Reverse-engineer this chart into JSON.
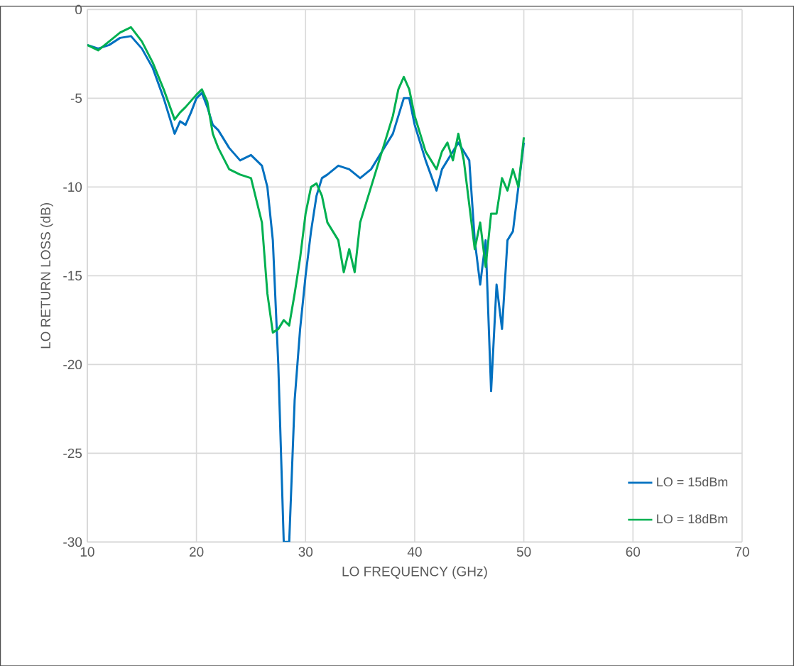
{
  "chart_data": {
    "type": "line",
    "xlabel": "LO FREQUENCY (GHz)",
    "ylabel": "LO RETURN LOSS (dB)",
    "xlim": [
      10,
      70
    ],
    "xticks": [
      10,
      20,
      30,
      40,
      50,
      60,
      70
    ],
    "ylim": [
      -30,
      0
    ],
    "yticks": [
      -30,
      -25,
      -20,
      -15,
      -10,
      -5,
      0
    ],
    "grid": true,
    "legend": "bottom right",
    "series": [
      {
        "name": "LO = 15dBm",
        "color": "#0070c0",
        "x": [
          10,
          11,
          12,
          13,
          14,
          15,
          16,
          17,
          17.5,
          18,
          18.5,
          19,
          19.5,
          20,
          20.5,
          21,
          21.5,
          22,
          23,
          24,
          25,
          26,
          26.5,
          27,
          27.5,
          28,
          28.5,
          29,
          29.5,
          30,
          30.5,
          31,
          31.5,
          32,
          33,
          34,
          35,
          36,
          37,
          38,
          38.5,
          39,
          39.5,
          40,
          41,
          42,
          42.5,
          43,
          44,
          45,
          45.5,
          46,
          46.5,
          47,
          47.5,
          48,
          48.5,
          49,
          49.5,
          50
        ],
        "values": [
          -2.0,
          -2.2,
          -2.0,
          -1.6,
          -1.5,
          -2.2,
          -3.3,
          -5.0,
          -6.0,
          -7.0,
          -6.3,
          -6.5,
          -5.8,
          -5.0,
          -4.7,
          -5.5,
          -6.5,
          -6.8,
          -7.8,
          -8.5,
          -8.2,
          -8.8,
          -10,
          -13,
          -20,
          -30,
          -30,
          -22,
          -18,
          -15,
          -12.5,
          -10.5,
          -9.5,
          -9.3,
          -8.8,
          -9.0,
          -9.5,
          -9.0,
          -8.0,
          -7.0,
          -6.0,
          -5.0,
          -5.0,
          -6.5,
          -8.5,
          -10.2,
          -9,
          -8.5,
          -7.5,
          -8.5,
          -13,
          -15.5,
          -13,
          -21.5,
          -15.5,
          -18,
          -13,
          -12.5,
          -10,
          -7.5
        ]
      },
      {
        "name": "LO = 18dBm",
        "color": "#00b050",
        "x": [
          10,
          11,
          12,
          13,
          14,
          15,
          16,
          17,
          18,
          18.5,
          19,
          20,
          20.5,
          21,
          21.5,
          22,
          23,
          24,
          25,
          26,
          26.5,
          27,
          27.5,
          28,
          28.5,
          29,
          29.5,
          30,
          30.5,
          31,
          31.5,
          32,
          32.5,
          33,
          33.5,
          34,
          34.5,
          35,
          36,
          37,
          38,
          38.5,
          39,
          39.5,
          40,
          41,
          42,
          42.5,
          43,
          43.5,
          44,
          44.5,
          45,
          45.5,
          46,
          46.5,
          47,
          47.5,
          48,
          48.5,
          49,
          49.5,
          50
        ],
        "values": [
          -2.0,
          -2.3,
          -1.8,
          -1.3,
          -1.0,
          -1.8,
          -3.0,
          -4.5,
          -6.2,
          -5.8,
          -5.5,
          -4.8,
          -4.5,
          -5.2,
          -7,
          -7.8,
          -9.0,
          -9.3,
          -9.5,
          -12,
          -16,
          -18.2,
          -18,
          -17.5,
          -17.8,
          -16,
          -14,
          -11.5,
          -10,
          -9.8,
          -10.5,
          -12,
          -12.5,
          -13,
          -14.8,
          -13.5,
          -14.8,
          -12,
          -10,
          -8,
          -6,
          -4.5,
          -3.8,
          -4.5,
          -6,
          -8,
          -9,
          -8,
          -7.5,
          -8.5,
          -7,
          -8.5,
          -11,
          -13.5,
          -12,
          -14.5,
          -11.5,
          -11.5,
          -9.5,
          -10.2,
          -9.0,
          -10,
          -7.2
        ]
      }
    ]
  }
}
